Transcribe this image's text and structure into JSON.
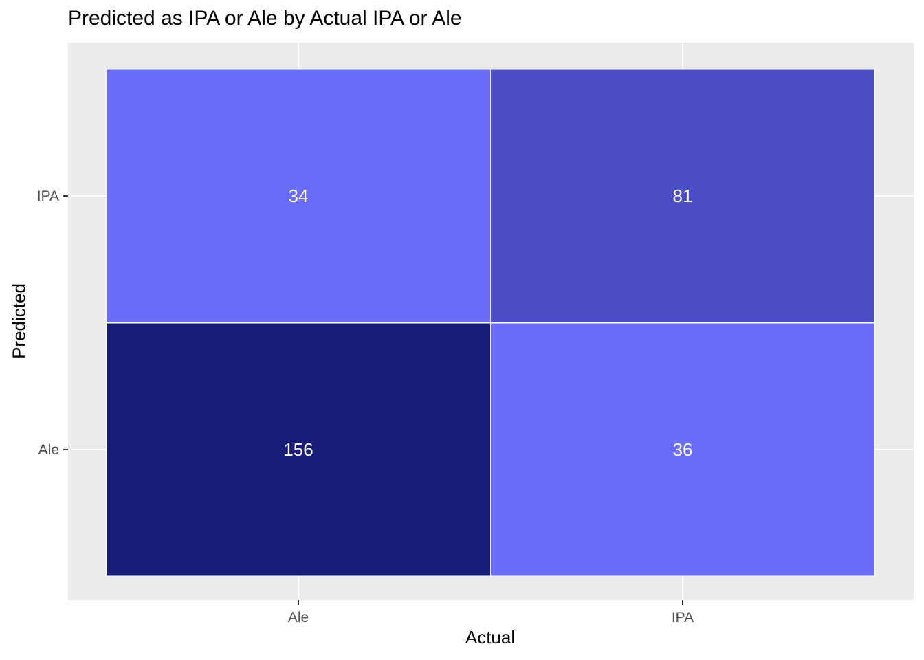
{
  "chart_data": {
    "type": "heatmap",
    "title": "Predicted as IPA or Ale by Actual IPA or Ale",
    "xlabel": "Actual",
    "ylabel": "Predicted",
    "x_categories": [
      "Ale",
      "IPA"
    ],
    "y_categories": [
      "Ale",
      "IPA"
    ],
    "cells": [
      {
        "x": "Ale",
        "y": "IPA",
        "value": 34,
        "color": "#6A6DF9"
      },
      {
        "x": "IPA",
        "y": "IPA",
        "value": 81,
        "color": "#4B4EC7"
      },
      {
        "x": "Ale",
        "y": "Ale",
        "value": 156,
        "color": "#171C78"
      },
      {
        "x": "IPA",
        "y": "Ale",
        "value": 36,
        "color": "#6A6DF9"
      }
    ],
    "panel_background": "#EBEBEB",
    "grid": true,
    "legend": "none"
  }
}
